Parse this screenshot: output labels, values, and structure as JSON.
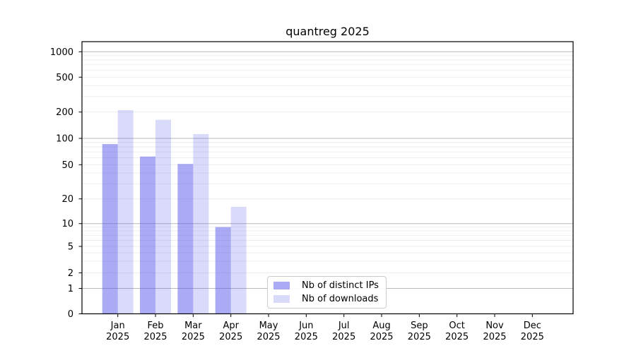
{
  "chart_data": {
    "type": "bar",
    "title": "quantreg 2025",
    "categories": [
      "Jan",
      "Feb",
      "Mar",
      "Apr",
      "May",
      "Jun",
      "Jul",
      "Aug",
      "Sep",
      "Oct",
      "Nov",
      "Dec"
    ],
    "category_year": "2025",
    "series": [
      {
        "name": "Nb of distinct IPs",
        "color": "#aaaaf5",
        "fill": "#5555eb",
        "fill_opacity": 0.5,
        "values": [
          86,
          62,
          51,
          9,
          0,
          0,
          0,
          0,
          0,
          0,
          0,
          0
        ]
      },
      {
        "name": "Nb of downloads",
        "color": "#dadafb",
        "fill": "#5555eb",
        "fill_opacity": 0.22,
        "values": [
          210,
          163,
          112,
          16,
          0,
          0,
          0,
          0,
          0,
          0,
          0,
          0
        ]
      }
    ],
    "yscale": "symlog",
    "yticks": [
      0,
      1,
      2,
      5,
      10,
      20,
      50,
      100,
      200,
      500,
      1000
    ],
    "ylim": [
      0,
      1300
    ],
    "xlabel": "",
    "ylabel": "",
    "grid": true,
    "legend_position": "bottom-center",
    "colors": {
      "grid_major": "#b9b9b9",
      "grid_minor": "#ececec",
      "spine": "#000000",
      "text": "#000000",
      "background": "#ffffff"
    }
  }
}
